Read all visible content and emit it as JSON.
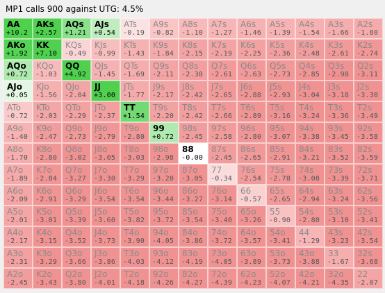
{
  "title": "MP1 calls 900 against UTG: 4.5%",
  "colors": {
    "positive_strong": "#4fd14f",
    "positive_light": "#e8f8e8",
    "zero": "#ffffff",
    "negative_scale": [
      "#fbe2e2",
      "#f7b3b3",
      "#f39696"
    ]
  },
  "rows": [
    [
      [
        "AA",
        "+10.2"
      ],
      [
        "AKs",
        "+2.57"
      ],
      [
        "AQs",
        "+1.21"
      ],
      [
        "AJs",
        "+0.54"
      ],
      [
        "ATs",
        "-0.19"
      ],
      [
        "A9s",
        "-0.82"
      ],
      [
        "A8s",
        "-1.10"
      ],
      [
        "A7s",
        "-1.27"
      ],
      [
        "A6s",
        "-1.46"
      ],
      [
        "A5s",
        "-1.39"
      ],
      [
        "A4s",
        "-1.54"
      ],
      [
        "A3s",
        "-1.66"
      ],
      [
        "A2s",
        "-1.80"
      ]
    ],
    [
      [
        "AKo",
        "+1.92"
      ],
      [
        "KK",
        "+7.10"
      ],
      [
        "KQs",
        "-0.49"
      ],
      [
        "KJs",
        "-0.99"
      ],
      [
        "KTs",
        "-1.43"
      ],
      [
        "K9s",
        "-1.84"
      ],
      [
        "K8s",
        "-2.15"
      ],
      [
        "K7s",
        "-2.19"
      ],
      [
        "K6s",
        "-2.25"
      ],
      [
        "K5s",
        "-2.36"
      ],
      [
        "K4s",
        "-2.48"
      ],
      [
        "K3s",
        "-2.61"
      ],
      [
        "K2s",
        "-2.74"
      ]
    ],
    [
      [
        "AQo",
        "+0.72"
      ],
      [
        "KQo",
        "-1.03"
      ],
      [
        "QQ",
        "+4.92"
      ],
      [
        "QJs",
        "-1.45"
      ],
      [
        "QTs",
        "-1.69"
      ],
      [
        "Q9s",
        "-2.11"
      ],
      [
        "Q8s",
        "-2.38"
      ],
      [
        "Q7s",
        "-2.61"
      ],
      [
        "Q6s",
        "-2.63"
      ],
      [
        "Q5s",
        "-2.73"
      ],
      [
        "Q4s",
        "-2.85"
      ],
      [
        "Q3s",
        "-2.98"
      ],
      [
        "Q2s",
        "-3.11"
      ]
    ],
    [
      [
        "AJo",
        "+0.05"
      ],
      [
        "KJo",
        "-1.56"
      ],
      [
        "QJo",
        "-2.04"
      ],
      [
        "JJ",
        "+3.00"
      ],
      [
        "JTs",
        "-1.77"
      ],
      [
        "J9s",
        "-2.17"
      ],
      [
        "J8s",
        "-2.42"
      ],
      [
        "J7s",
        "-2.65"
      ],
      [
        "J6s",
        "-2.88"
      ],
      [
        "J5s",
        "-2.93"
      ],
      [
        "J4s",
        "-3.04"
      ],
      [
        "J3s",
        "-3.18"
      ],
      [
        "J2s",
        "-3.30"
      ]
    ],
    [
      [
        "ATo",
        "-0.72"
      ],
      [
        "KTo",
        "-2.03"
      ],
      [
        "QTo",
        "-2.29"
      ],
      [
        "JTo",
        "-2.37"
      ],
      [
        "TT",
        "+1.54"
      ],
      [
        "T9s",
        "-2.20"
      ],
      [
        "T8s",
        "-2.42"
      ],
      [
        "T7s",
        "-2.66"
      ],
      [
        "T6s",
        "-2.89"
      ],
      [
        "T5s",
        "-3.16"
      ],
      [
        "T4s",
        "-3.24"
      ],
      [
        "T3s",
        "-3.36"
      ],
      [
        "T2s",
        "-3.49"
      ]
    ],
    [
      [
        "A9o",
        "-1.40"
      ],
      [
        "K9o",
        "-2.47"
      ],
      [
        "Q9o",
        "-2.73"
      ],
      [
        "J9o",
        "-2.79"
      ],
      [
        "T9o",
        "-2.80"
      ],
      [
        "99",
        "+0.72"
      ],
      [
        "98s",
        "-2.45"
      ],
      [
        "97s",
        "-2.58"
      ],
      [
        "96s",
        "-2.80"
      ],
      [
        "95s",
        "-3.07"
      ],
      [
        "94s",
        "-3.38"
      ],
      [
        "93s",
        "-3.45"
      ],
      [
        "92s",
        "-3.58"
      ]
    ],
    [
      [
        "A8o",
        "-1.70"
      ],
      [
        "K8o",
        "-2.80"
      ],
      [
        "Q8o",
        "-3.02"
      ],
      [
        "J8o",
        "-3.05"
      ],
      [
        "T8o",
        "-3.03"
      ],
      [
        "98o",
        "-2.98"
      ],
      [
        "88",
        "-0.00"
      ],
      [
        "87s",
        "-2.45"
      ],
      [
        "86s",
        "-2.65"
      ],
      [
        "85s",
        "-2.91"
      ],
      [
        "84s",
        "-3.21"
      ],
      [
        "83s",
        "-3.52"
      ],
      [
        "82s",
        "-3.59"
      ]
    ],
    [
      [
        "A7o",
        "-1.89"
      ],
      [
        "K7o",
        "-2.84"
      ],
      [
        "Q7o",
        "-3.27"
      ],
      [
        "J7o",
        "-3.30"
      ],
      [
        "T7o",
        "-3.29"
      ],
      [
        "97o",
        "-3.20"
      ],
      [
        "87o",
        "-3.05"
      ],
      [
        "77",
        "-0.34"
      ],
      [
        "76s",
        "-2.54"
      ],
      [
        "75s",
        "-2.78"
      ],
      [
        "74s",
        "-3.08"
      ],
      [
        "73s",
        "-3.39"
      ],
      [
        "72s",
        "-3.71"
      ]
    ],
    [
      [
        "A6o",
        "-2.09"
      ],
      [
        "K6o",
        "-2.91"
      ],
      [
        "Q6o",
        "-3.29"
      ],
      [
        "J6o",
        "-3.54"
      ],
      [
        "T6o",
        "-3.54"
      ],
      [
        "96o",
        "-3.44"
      ],
      [
        "86o",
        "-3.27"
      ],
      [
        "76o",
        "-3.14"
      ],
      [
        "66",
        "-0.57"
      ],
      [
        "65s",
        "-2.65"
      ],
      [
        "64s",
        "-2.94"
      ],
      [
        "63s",
        "-3.24"
      ],
      [
        "62s",
        "-3.56"
      ]
    ],
    [
      [
        "A5o",
        "-2.01"
      ],
      [
        "K5o",
        "-3.01"
      ],
      [
        "Q5o",
        "-3.39"
      ],
      [
        "J5o",
        "-3.60"
      ],
      [
        "T5o",
        "-3.82"
      ],
      [
        "95o",
        "-3.72"
      ],
      [
        "85o",
        "-3.54"
      ],
      [
        "75o",
        "-3.40"
      ],
      [
        "65o",
        "-3.26"
      ],
      [
        "55",
        "-0.90"
      ],
      [
        "54s",
        "-2.80"
      ],
      [
        "53s",
        "-3.10"
      ],
      [
        "52s",
        "-3.41"
      ]
    ],
    [
      [
        "A4o",
        "-2.17"
      ],
      [
        "K4o",
        "-3.15"
      ],
      [
        "Q4o",
        "-3.52"
      ],
      [
        "J4o",
        "-3.73"
      ],
      [
        "T4o",
        "-3.90"
      ],
      [
        "94o",
        "-4.05"
      ],
      [
        "84o",
        "-3.86"
      ],
      [
        "74o",
        "-3.72"
      ],
      [
        "64o",
        "-3.57"
      ],
      [
        "54o",
        "-3.41"
      ],
      [
        "44",
        "-1.29"
      ],
      [
        "43s",
        "-3.23"
      ],
      [
        "42s",
        "-3.54"
      ]
    ],
    [
      [
        "A3o",
        "-2.31"
      ],
      [
        "K3o",
        "-3.29"
      ],
      [
        "Q3o",
        "-3.66"
      ],
      [
        "J3o",
        "-3.86"
      ],
      [
        "T3o",
        "-4.03"
      ],
      [
        "93o",
        "-4.12"
      ],
      [
        "83o",
        "-4.19"
      ],
      [
        "73o",
        "-4.05"
      ],
      [
        "63o",
        "-3.89"
      ],
      [
        "53o",
        "-3.73"
      ],
      [
        "43o",
        "-3.88"
      ],
      [
        "33",
        "-1.67"
      ],
      [
        "32s",
        "-3.68"
      ]
    ],
    [
      [
        "A2o",
        "-2.45"
      ],
      [
        "K2o",
        "-3.43"
      ],
      [
        "Q2o",
        "-3.80"
      ],
      [
        "J2o",
        "-4.01"
      ],
      [
        "T2o",
        "-4.18"
      ],
      [
        "92o",
        "-4.26"
      ],
      [
        "82o",
        "-4.27"
      ],
      [
        "72o",
        "-4.39"
      ],
      [
        "62o",
        "-4.23"
      ],
      [
        "52o",
        "-4.07"
      ],
      [
        "42o",
        "-4.21"
      ],
      [
        "32o",
        "-4.35"
      ],
      [
        "22",
        "-2.07"
      ]
    ]
  ]
}
